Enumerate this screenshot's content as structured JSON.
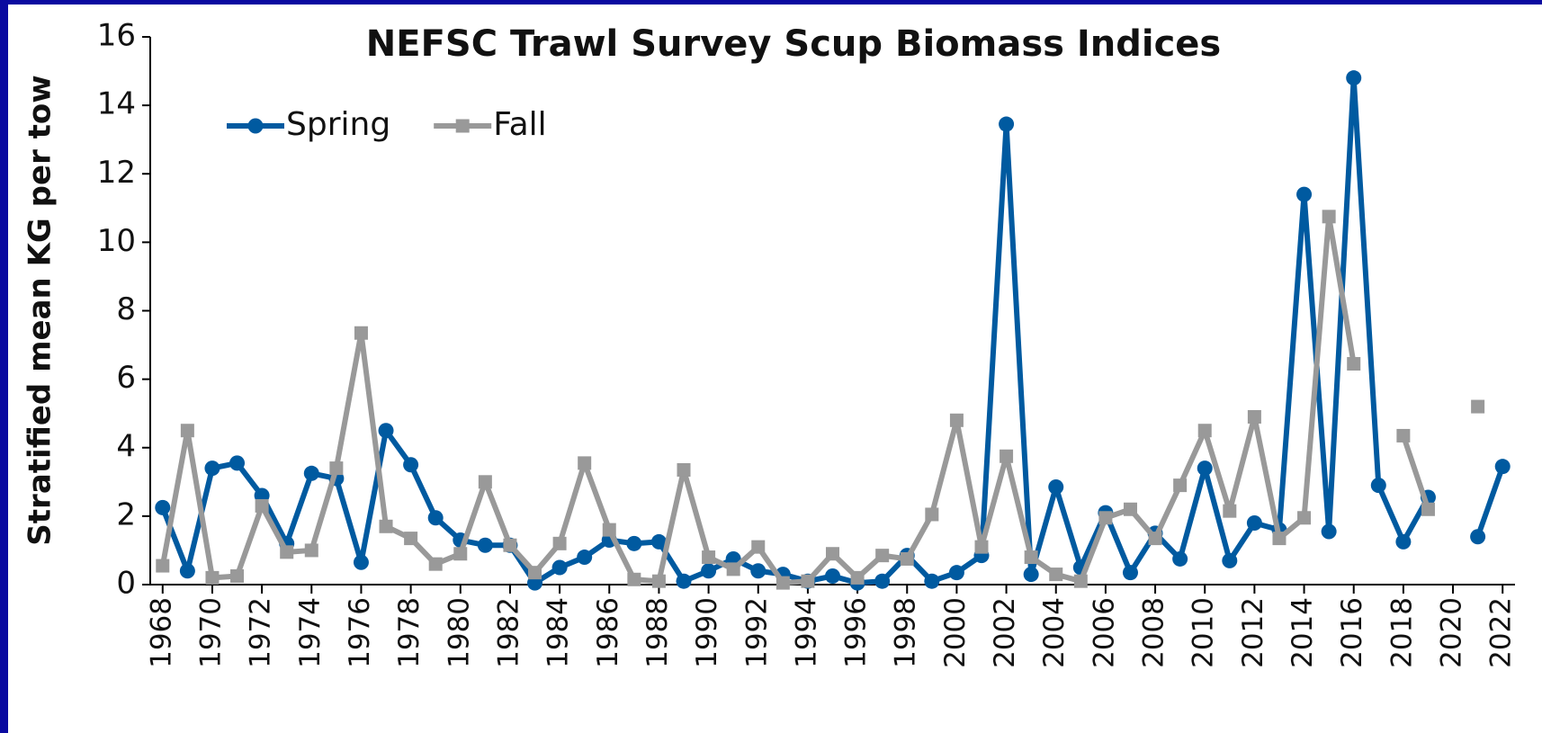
{
  "chart_data": {
    "type": "line",
    "title": "NEFSC Trawl Survey Scup Biomass Indices",
    "y_label": "Stratified mean KG per tow",
    "x": [
      1968,
      1969,
      1970,
      1971,
      1972,
      1973,
      1974,
      1975,
      1976,
      1977,
      1978,
      1979,
      1980,
      1981,
      1982,
      1983,
      1984,
      1985,
      1986,
      1987,
      1988,
      1989,
      1990,
      1991,
      1992,
      1993,
      1994,
      1995,
      1996,
      1997,
      1998,
      1999,
      2000,
      2001,
      2002,
      2003,
      2004,
      2005,
      2006,
      2007,
      2008,
      2009,
      2010,
      2011,
      2012,
      2013,
      2014,
      2015,
      2016,
      2017,
      2018,
      2019,
      2020,
      2021,
      2022
    ],
    "xlim": [
      1967.5,
      2022.5
    ],
    "xticks": [
      1968,
      1970,
      1972,
      1974,
      1976,
      1978,
      1980,
      1982,
      1984,
      1986,
      1988,
      1990,
      1992,
      1994,
      1996,
      1998,
      2000,
      2002,
      2004,
      2006,
      2008,
      2010,
      2012,
      2014,
      2016,
      2018,
      2020,
      2022
    ],
    "ylim": [
      0,
      16
    ],
    "yticks": [
      0,
      2,
      4,
      6,
      8,
      10,
      12,
      14,
      16
    ],
    "legend": "top-left",
    "series": [
      {
        "name": "Spring",
        "color": "#005aa0",
        "marker": "circle",
        "values": [
          2.25,
          0.4,
          3.4,
          3.55,
          2.6,
          1.2,
          3.25,
          3.1,
          0.65,
          4.5,
          3.5,
          1.95,
          1.3,
          1.15,
          1.15,
          0.05,
          0.5,
          0.8,
          1.3,
          1.2,
          1.25,
          0.1,
          0.4,
          0.75,
          0.4,
          0.3,
          0.1,
          0.25,
          0.05,
          0.1,
          0.85,
          0.1,
          0.35,
          0.85,
          13.45,
          0.3,
          2.85,
          0.5,
          2.1,
          0.35,
          1.5,
          0.75,
          3.4,
          0.7,
          1.8,
          1.6,
          11.4,
          1.55,
          14.8,
          2.9,
          1.25,
          2.55,
          null,
          1.4,
          3.45
        ]
      },
      {
        "name": "Fall",
        "color": "#999999",
        "marker": "square",
        "values": [
          0.55,
          4.5,
          0.2,
          0.25,
          2.3,
          0.95,
          1.0,
          3.4,
          7.35,
          1.7,
          1.35,
          0.6,
          0.9,
          3.0,
          1.15,
          0.35,
          1.2,
          3.55,
          1.6,
          0.15,
          0.1,
          3.35,
          0.8,
          0.45,
          1.1,
          0.05,
          0.1,
          0.9,
          0.2,
          0.85,
          0.75,
          2.05,
          4.8,
          1.1,
          3.75,
          0.8,
          0.3,
          0.1,
          1.95,
          2.2,
          1.35,
          2.9,
          4.5,
          2.15,
          4.9,
          1.35,
          1.95,
          10.75,
          6.45,
          null,
          4.35,
          2.2,
          null,
          5.2,
          null
        ]
      }
    ]
  }
}
